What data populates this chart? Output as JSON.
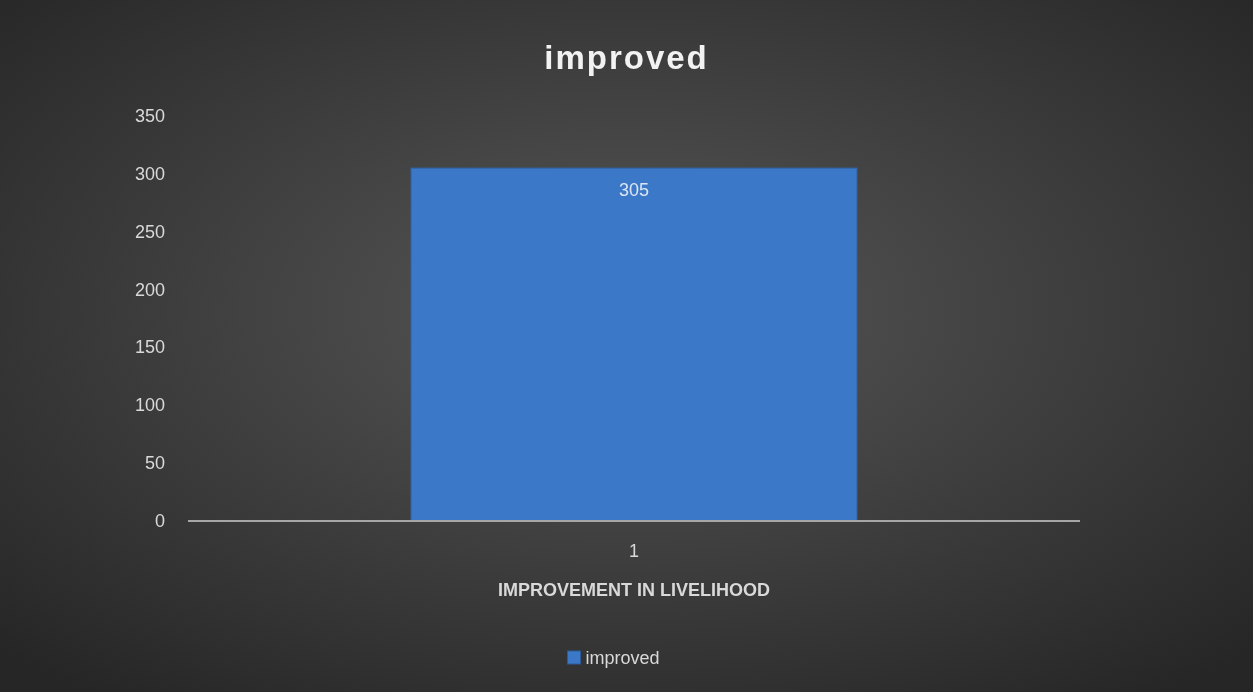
{
  "chart_data": {
    "type": "bar",
    "title": "improved",
    "xlabel": "IMPROVEMENT IN LIVELIHOOD",
    "categories": [
      "1"
    ],
    "series": [
      {
        "name": "improved",
        "color": "#3b78c8",
        "values": [
          305
        ]
      }
    ],
    "ylim": [
      0,
      350
    ],
    "yticks": [
      0,
      50,
      100,
      150,
      200,
      250,
      300,
      350
    ],
    "legend": "bottom",
    "data_labels": true
  }
}
